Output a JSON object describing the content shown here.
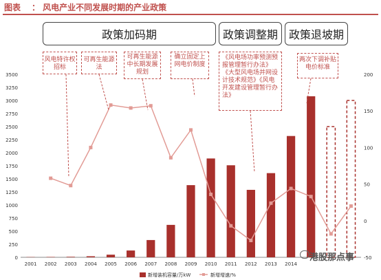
{
  "header": {
    "label": "图表",
    "title": "：  风电产业不同发展时期的产业政策"
  },
  "phases": [
    "政策加码期",
    "政策调整期",
    "政策退坡期"
  ],
  "policies": [
    "风电特许权招标",
    "可再生能源法",
    "可再生能源中长期发展规划",
    "确立固定上网电价制度",
    "《风电场功率预测预报管理暂行办法》《大型风电场并网设计技术规范》《风电开发建设管理暂行办法》",
    "两次下调补贴电价标准"
  ],
  "watermark": "港股那点事",
  "colors": {
    "bar": "#a8302c",
    "line": "#e29b95",
    "accent": "#c0504d"
  },
  "chart_data": {
    "type": "bar",
    "categories": [
      "2001",
      "2002",
      "2003",
      "2004",
      "2005",
      "2006",
      "2007",
      "2008",
      "2009",
      "2010",
      "2011",
      "2012",
      "2013",
      "2014",
      "2015",
      "2016",
      "2017"
    ],
    "category_labels": [
      "2001",
      "2002",
      "2003",
      "2004",
      "2005",
      "2006",
      "2007",
      "2008",
      "2009",
      "2010",
      "2011",
      "2012",
      "2013",
      "2014",
      "",
      "",
      ""
    ],
    "series": [
      {
        "name": "新增装机容量/万kW",
        "kind": "bar",
        "axis": "left",
        "values": [
          5,
          7,
          10,
          20,
          50,
          130,
          330,
          620,
          1380,
          1890,
          1760,
          1290,
          1610,
          2320,
          3080,
          null,
          null
        ]
      },
      {
        "name": "新增增速/%",
        "kind": "line",
        "axis": "right",
        "values": [
          null,
          58,
          48,
          100,
          158,
          154,
          157,
          86,
          124,
          36,
          -7,
          -27,
          24,
          44,
          33,
          -18,
          20
        ]
      }
    ],
    "projected": [
      {
        "category": "2016",
        "value": 2500
      },
      {
        "category": "2017",
        "value": 3000
      }
    ],
    "ylim": [
      0,
      3500
    ],
    "yticks": [
      0,
      250,
      500,
      750,
      1000,
      1250,
      1500,
      1750,
      2000,
      2250,
      2500,
      2750,
      3000,
      3250,
      3500
    ],
    "y2lim": [
      -50,
      200
    ],
    "y2ticks": [
      -50,
      0,
      50,
      100,
      150,
      200
    ],
    "legend_position": "bottom"
  }
}
